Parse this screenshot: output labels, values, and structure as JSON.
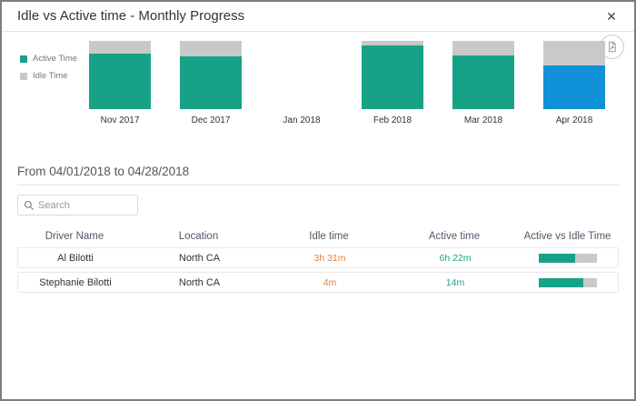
{
  "dialog": {
    "title": "Idle vs Active time - Monthly Progress",
    "close_label": "✕"
  },
  "colors": {
    "active_teal": "#17a288",
    "idle_gray": "#c9c9c9",
    "selected_blue": "#1090d7",
    "idle_text_orange": "#e2813f",
    "active_text_teal": "#17a288"
  },
  "chart_data": {
    "type": "bar",
    "stacked": true,
    "title": "Idle vs Active time - Monthly Progress",
    "categories": [
      "Nov 2017",
      "Dec 2017",
      "Jan 2018",
      "Feb 2018",
      "Mar 2018",
      "Apr 2018"
    ],
    "series": [
      {
        "name": "Active Time",
        "values": [
          82,
          77,
          0,
          93,
          79,
          64
        ]
      },
      {
        "name": "Idle Time",
        "values": [
          18,
          23,
          0,
          7,
          21,
          36
        ]
      }
    ],
    "unit": "percent of bar height",
    "selected_category": "Apr 2018",
    "legend_position": "left",
    "grid": false
  },
  "period": {
    "label": "From 04/01/2018 to 04/28/2018"
  },
  "search": {
    "placeholder": "Search"
  },
  "table": {
    "columns": [
      "Driver Name",
      "Location",
      "Idle time",
      "Active time",
      "Active vs Idle Time"
    ],
    "rows": [
      {
        "driver_name": "Al Bilotti",
        "location": "North CA",
        "idle_time": "3h 31m",
        "active_time": "6h 22m",
        "active_pct": 64
      },
      {
        "driver_name": "Stephanie Bilotti",
        "location": "North CA",
        "idle_time": "4m",
        "active_time": "14m",
        "active_pct": 78
      }
    ]
  }
}
